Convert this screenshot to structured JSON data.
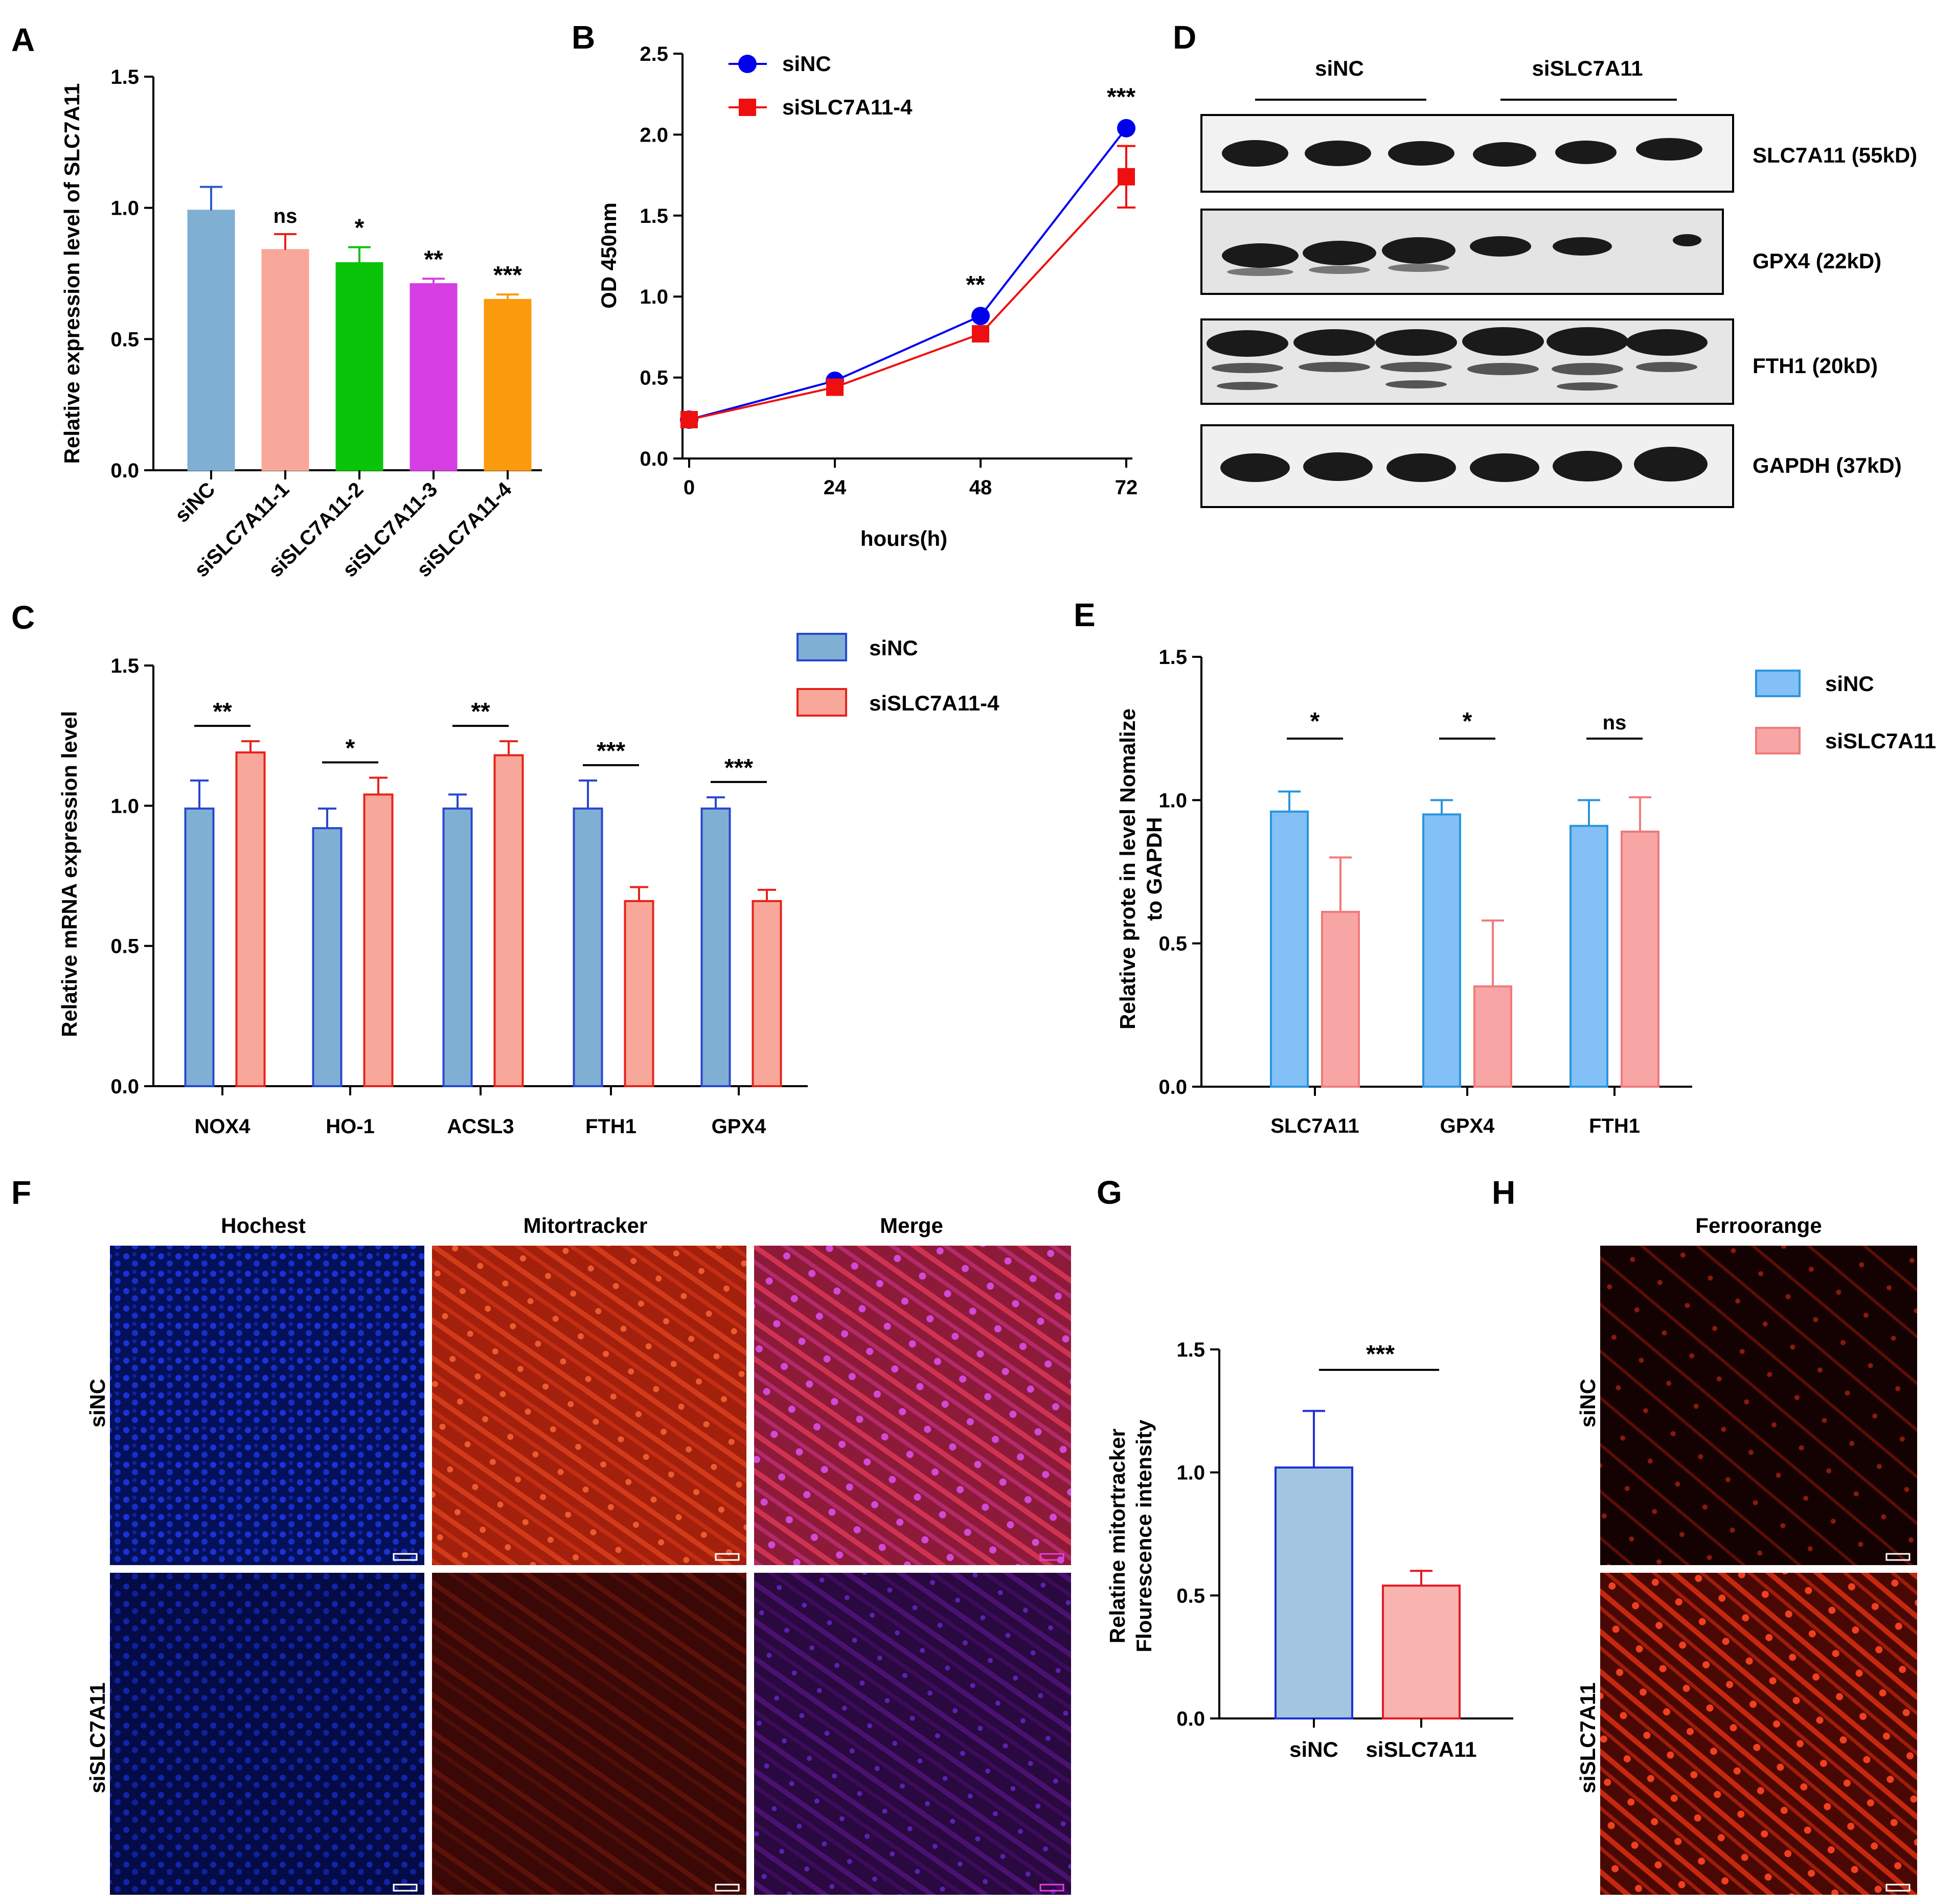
{
  "panels": {
    "A": {
      "letter": "A"
    },
    "B": {
      "letter": "B"
    },
    "C": {
      "letter": "C"
    },
    "D": {
      "letter": "D"
    },
    "E": {
      "letter": "E"
    },
    "F": {
      "letter": "F"
    },
    "G": {
      "letter": "G"
    },
    "H": {
      "letter": "H"
    }
  },
  "chart_data": [
    {
      "id": "A",
      "type": "bar",
      "categories": [
        "siNC",
        "siSLC7A11-1",
        "siSLC7A11-2",
        "siSLC7A11-3",
        "siSLC7A11-4"
      ],
      "values": [
        0.99,
        0.84,
        0.79,
        0.71,
        0.65
      ],
      "errors": [
        0.09,
        0.06,
        0.06,
        0.02,
        0.02
      ],
      "significance": [
        "",
        "ns",
        "*",
        "**",
        "***"
      ],
      "colors": [
        "#7fb0d3",
        "#f8a89a",
        "#0ac40a",
        "#d63ee3",
        "#fb9a0d"
      ],
      "ylabel": "Relative expression level of SLC7A11",
      "ylim": [
        0,
        1.5
      ],
      "yticks": [
        "0.0",
        "0.5",
        "1.0",
        "1.5"
      ]
    },
    {
      "id": "B",
      "type": "line",
      "x": [
        0,
        24,
        48,
        72
      ],
      "xticks": [
        "0",
        "24",
        "48",
        "72"
      ],
      "series": [
        {
          "name": "siNC",
          "values": [
            0.24,
            0.48,
            0.88,
            2.04
          ],
          "errors": [
            0.02,
            0.02,
            0.02,
            0.02
          ],
          "color": "#0000ee",
          "marker": "circle"
        },
        {
          "name": "siSLC7A11-4",
          "values": [
            0.24,
            0.44,
            0.77,
            1.74
          ],
          "errors": [
            0.02,
            0.02,
            0.02,
            0.19
          ],
          "color": "#ee1010",
          "marker": "square"
        }
      ],
      "significance": [
        "",
        "",
        "**",
        "***"
      ],
      "xlabel": "hours(h)",
      "ylabel": "OD 450nm",
      "ylim": [
        0,
        2.5
      ],
      "yticks": [
        "0.0",
        "0.5",
        "1.0",
        "1.5",
        "2.0",
        "2.5"
      ]
    },
    {
      "id": "C",
      "type": "bar",
      "categories": [
        "NOX4",
        "HO-1",
        "ACSL3",
        "FTH1",
        "GPX4"
      ],
      "series": [
        {
          "name": "siNC",
          "values": [
            0.99,
            0.92,
            0.99,
            0.99,
            0.99
          ],
          "errors": [
            0.1,
            0.07,
            0.05,
            0.1,
            0.04
          ],
          "fill": "#7fb0d3",
          "stroke": "#2a46d0"
        },
        {
          "name": "siSLC7A11-4",
          "values": [
            1.19,
            1.04,
            1.18,
            0.66,
            0.66
          ],
          "errors": [
            0.04,
            0.06,
            0.05,
            0.05,
            0.04
          ],
          "fill": "#f8a89a",
          "stroke": "#e5231a"
        }
      ],
      "significance": [
        "**",
        "*",
        "**",
        "***",
        "***"
      ],
      "ylabel": "Relative mRNA  expression level",
      "ylim": [
        0,
        1.5
      ],
      "yticks": [
        "0.0",
        "0.5",
        "1.0",
        "1.5"
      ]
    },
    {
      "id": "E",
      "type": "bar",
      "categories": [
        "SLC7A11",
        "GPX4",
        "FTH1"
      ],
      "series": [
        {
          "name": "siNC",
          "values": [
            0.96,
            0.95,
            0.91
          ],
          "errors": [
            0.07,
            0.05,
            0.09
          ],
          "fill": "#82c0f5",
          "stroke": "#2b94dd"
        },
        {
          "name": "siSLC7A11",
          "values": [
            0.61,
            0.35,
            0.89
          ],
          "errors": [
            0.19,
            0.23,
            0.12
          ],
          "fill": "#f8a5a5",
          "stroke": "#f07a7a"
        }
      ],
      "significance": [
        "*",
        "*",
        "ns"
      ],
      "ylabel": "Relative  prote in level Nomalize to GAPDH",
      "ylabel_lines": [
        "Relative  prote in level Nomalize",
        "to GAPDH"
      ],
      "ylim": [
        0,
        1.5
      ],
      "yticks": [
        "0.0",
        "0.5",
        "1.0",
        "1.5"
      ]
    },
    {
      "id": "G",
      "type": "bar",
      "categories": [
        "siNC",
        "siSLC7A11"
      ],
      "values": [
        1.02,
        0.54
      ],
      "errors": [
        0.23,
        0.06
      ],
      "fills": [
        "#a3c6e0",
        "#f9b4b0"
      ],
      "strokes": [
        "#1f2fd8",
        "#e51a24"
      ],
      "significance": "***",
      "ylabel_lines": [
        "Relatine mitortracker",
        "Flourescence intensity"
      ],
      "ylim": [
        0,
        1.5
      ],
      "yticks": [
        "0.0",
        "0.5",
        "1.0",
        "1.5"
      ]
    }
  ],
  "blot": {
    "groups": [
      "siNC",
      "siSLC7A11"
    ],
    "rows": [
      "SLC7A11 (55kD)",
      "GPX4 (22kD)",
      "FTH1 (20kD)",
      "GAPDH (37kD)"
    ]
  },
  "imaging_F": {
    "columns": [
      "Hochest",
      "Mitortracker",
      "Merge"
    ],
    "rows": [
      "siNC",
      "siSLC7A11"
    ]
  },
  "imaging_H": {
    "column": "Ferroorange",
    "rows": [
      "siNC",
      "siSLC7A11"
    ]
  }
}
